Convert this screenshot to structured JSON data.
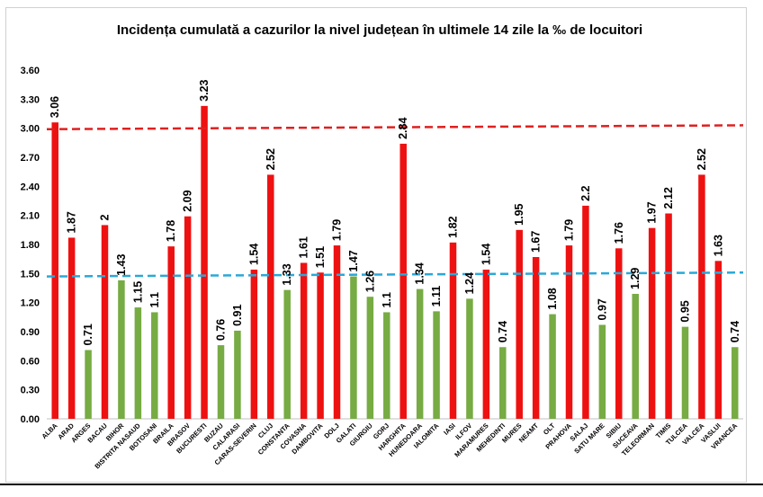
{
  "chart_data": {
    "type": "bar",
    "title": "Incidența cumulată a cazurilor la nivel județean în ultimele 14 zile la ‰ de locuitori",
    "xlabel": "",
    "ylabel": "",
    "ylim": [
      0,
      3.6
    ],
    "yticks": [
      "0.00",
      "0.30",
      "0.60",
      "0.90",
      "1.20",
      "1.50",
      "1.80",
      "2.10",
      "2.40",
      "2.70",
      "3.00",
      "3.30",
      "3.60"
    ],
    "grid": false,
    "legend": "none",
    "categories": [
      "ALBA",
      "ARAD",
      "ARGES",
      "BACAU",
      "BIHOR",
      "BISTRITA NASAUD",
      "BOTOSANI",
      "BRAILA",
      "BRASOV",
      "BUCURESTI",
      "BUZAU",
      "CALARASI",
      "CARAS-SEVERIN",
      "CLUJ",
      "CONSTANTA",
      "COVASNA",
      "DAMBOVITA",
      "DOLJ",
      "GALATI",
      "GIURGIU",
      "GORJ",
      "HARGHITA",
      "HUNEDOARA",
      "IALOMITA",
      "IASI",
      "ILFOV",
      "MARAMURES",
      "MEHEDINTI",
      "MURES",
      "NEAMT",
      "OLT",
      "PRAHOVA",
      "SALAJ",
      "SATU MARE",
      "SIBIU",
      "SUCEAVA",
      "TELEORMAN",
      "TIMIS",
      "TULCEA",
      "VALCEA",
      "VASLUI",
      "VRANCEA"
    ],
    "values": [
      3.06,
      1.87,
      0.71,
      2,
      1.43,
      1.15,
      1.1,
      1.78,
      2.09,
      3.23,
      0.76,
      0.91,
      1.54,
      2.52,
      1.33,
      1.61,
      1.51,
      1.79,
      1.47,
      1.26,
      1.1,
      2.84,
      1.34,
      1.11,
      1.82,
      1.24,
      1.54,
      0.74,
      1.95,
      1.67,
      1.08,
      1.79,
      2.2,
      0.97,
      1.76,
      1.29,
      1.97,
      2.12,
      0.95,
      2.52,
      1.63,
      0.74
    ],
    "value_labels": [
      "3.06",
      "1.87",
      "0.71",
      "2",
      "1.43",
      "1.15",
      "1.1",
      "1.78",
      "2.09",
      "3.23",
      "0.76",
      "0.91",
      "1.54",
      "2.52",
      "1.33",
      "1.61",
      "1.51",
      "1.79",
      "1.47",
      "1.26",
      "1.1",
      "2.84",
      "1.34",
      "1.11",
      "1.82",
      "1.24",
      "1.54",
      "0.74",
      "1.95",
      "1.67",
      "1.08",
      "1.79",
      "2.2",
      "0.97",
      "1.76",
      "1.29",
      "1.97",
      "2.12",
      "0.95",
      "2.52",
      "1.63",
      "0.74"
    ],
    "bar_colors": [
      "red",
      "red",
      "green",
      "red",
      "green",
      "green",
      "green",
      "red",
      "red",
      "red",
      "green",
      "green",
      "red",
      "red",
      "green",
      "red",
      "red",
      "red",
      "green",
      "green",
      "green",
      "red",
      "green",
      "green",
      "red",
      "green",
      "red",
      "green",
      "red",
      "red",
      "green",
      "red",
      "red",
      "green",
      "red",
      "green",
      "red",
      "red",
      "green",
      "red",
      "red",
      "green"
    ],
    "palette": {
      "red": "#ee1111",
      "green": "#77ab43"
    },
    "reference_lines": [
      {
        "start": 2.99,
        "end": 3.03,
        "color": "#e02020",
        "style": "dashed"
      },
      {
        "start": 1.47,
        "end": 1.51,
        "color": "#2aa8d8",
        "style": "dashed"
      }
    ]
  }
}
